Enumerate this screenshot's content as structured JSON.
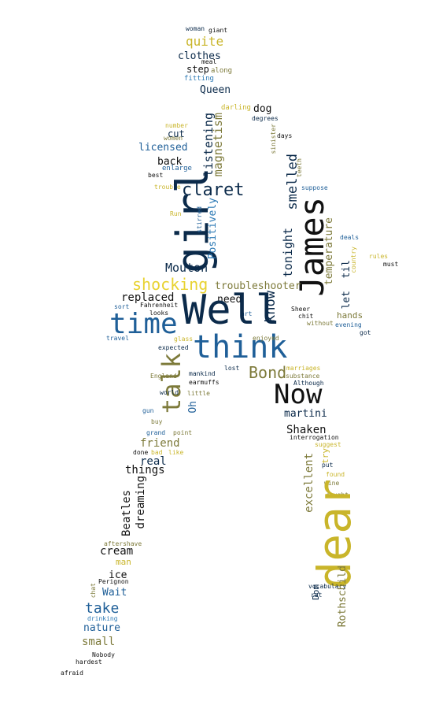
{
  "wordcloud": {
    "colors": {
      "navy": "#0b2a4a",
      "blue": "#1f5f98",
      "sky": "#2d7ab5",
      "olive": "#7d7a3a",
      "gold": "#c9b52a",
      "yellow": "#e8d230",
      "black": "#111111"
    },
    "words": [
      "woman",
      "giant",
      "quite",
      "meal",
      "clothes",
      "step",
      "along",
      "fitting",
      "Queen",
      "darling",
      "dog",
      "degrees",
      "number",
      "cut",
      "women",
      "licensed",
      "magnetism",
      "listening",
      "back",
      "enlarge",
      "best",
      "trouble",
      "girl",
      "claret",
      "sinister",
      "days",
      "teeth",
      "suppose",
      "smelled",
      "James",
      "Run",
      "stirred",
      "Positively",
      "tonight",
      "temperature",
      "til",
      "let",
      "rules",
      "must",
      "country",
      "deals",
      "Mouton",
      "shocking",
      "troubleshooter",
      "replaced",
      "need",
      "know",
      "Fahrenheit",
      "sort",
      "looks",
      "art",
      "Sheer",
      "chit",
      "hands",
      "Well",
      "time",
      "evening",
      "without",
      "got",
      "travel",
      "glass",
      "think",
      "enjoyed",
      "expected",
      "England",
      "mankind",
      "lost",
      "marriages",
      "talk",
      "Bond",
      "substance",
      "earmuffs",
      "Although",
      "world",
      "little",
      "Now",
      "Oh",
      "gun",
      "martini",
      "buy",
      "grand",
      "point",
      "Shaken",
      "interrogation",
      "suggest",
      "friend",
      "done",
      "bad",
      "like",
      "try",
      "put",
      "found",
      "real",
      "things",
      "wine",
      "caught",
      "excellent",
      "dear",
      "dreaming",
      "Beatles",
      "aftershave",
      "cream",
      "man",
      "ice",
      "Perignon",
      "chat",
      "Wait",
      "take",
      "drinking",
      "vocabulary",
      "Dom",
      "rat",
      "Rothschild",
      "nature",
      "small",
      "Nobody",
      "hardest",
      "afraid"
    ]
  }
}
